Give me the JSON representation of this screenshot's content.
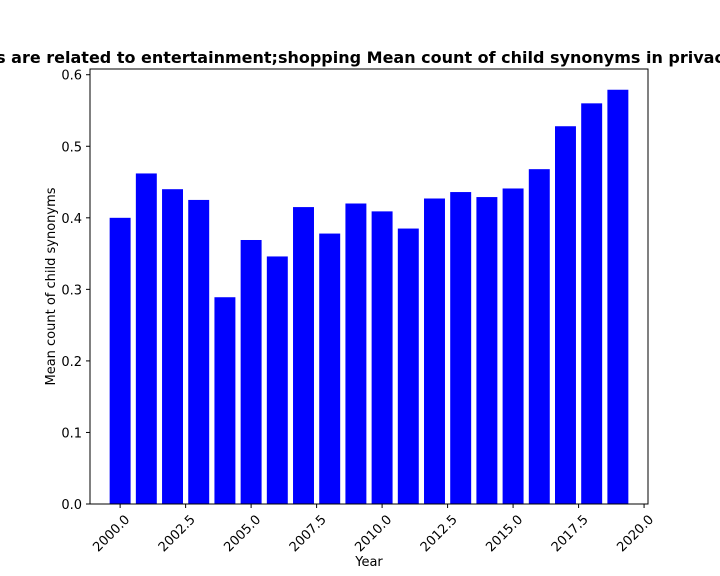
{
  "chart_data": {
    "type": "bar",
    "title": "Mean count of child synonyms in privacy policies that ... their websites are related to entertainment;shopping Mean count of child synonyms in privacy policies that ...",
    "title_visible": "s are related to entertainment;shopping Mean count of child synonyms in privac",
    "xlabel": "Year",
    "ylabel": "Mean count of child synonyms",
    "x": [
      2000,
      2001,
      2002,
      2003,
      2004,
      2005,
      2006,
      2007,
      2008,
      2009,
      2010,
      2011,
      2012,
      2013,
      2014,
      2015,
      2016,
      2017,
      2018,
      2019
    ],
    "values": [
      0.4,
      0.462,
      0.44,
      0.425,
      0.289,
      0.369,
      0.346,
      0.415,
      0.378,
      0.42,
      0.409,
      0.385,
      0.427,
      0.436,
      0.429,
      0.441,
      0.468,
      0.528,
      0.56,
      0.579
    ],
    "xlim": [
      1998.85,
      2020.15
    ],
    "ylim": [
      0,
      0.608
    ],
    "xticks": [
      "2000.0",
      "2002.5",
      "2005.0",
      "2007.5",
      "2010.0",
      "2012.5",
      "2015.0",
      "2017.5",
      "2020.0"
    ],
    "xtick_values": [
      2000,
      2002.5,
      2005,
      2007.5,
      2010,
      2012.5,
      2015,
      2017.5,
      2020
    ],
    "yticks": [
      "0.0",
      "0.1",
      "0.2",
      "0.3",
      "0.4",
      "0.5",
      "0.6"
    ],
    "ytick_values": [
      0,
      0.1,
      0.2,
      0.3,
      0.4,
      0.5,
      0.6
    ],
    "bar_color": "#0000ff",
    "grid": false
  }
}
